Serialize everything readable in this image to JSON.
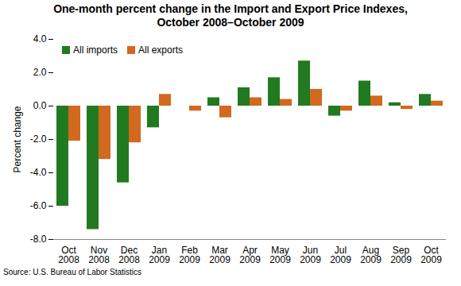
{
  "chart_data": {
    "type": "bar",
    "title": "One-month percent change in the Import and Export Price Indexes, October 2008–October 2009",
    "y_label": "Percent change",
    "source": "Source: U.S. Bureau of Labor Statistics",
    "categories": [
      "Oct 2008",
      "Nov 2008",
      "Dec 2008",
      "Jan 2009",
      "Feb 2009",
      "Mar 2009",
      "Apr 2009",
      "May 2009",
      "Jun 2009",
      "Jul 2009",
      "Aug 2009",
      "Sep 2009",
      "Oct 2009"
    ],
    "series": [
      {
        "name": "All imports",
        "color": "#217a1f",
        "values": [
          -6.0,
          -7.4,
          -4.6,
          -1.3,
          0.0,
          0.5,
          1.1,
          1.7,
          2.7,
          -0.6,
          1.5,
          0.2,
          0.7
        ]
      },
      {
        "name": "All exports",
        "color": "#d2691e",
        "values": [
          -2.1,
          -3.2,
          -2.2,
          0.7,
          -0.3,
          -0.7,
          0.5,
          0.4,
          1.0,
          -0.3,
          0.6,
          -0.2,
          0.3
        ]
      }
    ],
    "ylim": [
      -8,
      4
    ],
    "yticks": [
      {
        "value": -8,
        "label": "-8.0"
      },
      {
        "value": -6,
        "label": "-6.0"
      },
      {
        "value": -4,
        "label": "-4.0"
      },
      {
        "value": -2,
        "label": "-2.0"
      },
      {
        "value": 0,
        "label": "0.0"
      },
      {
        "value": 2,
        "label": "2.0"
      },
      {
        "value": 4,
        "label": "4.0"
      }
    ],
    "legend": "top-left",
    "grid": false
  }
}
